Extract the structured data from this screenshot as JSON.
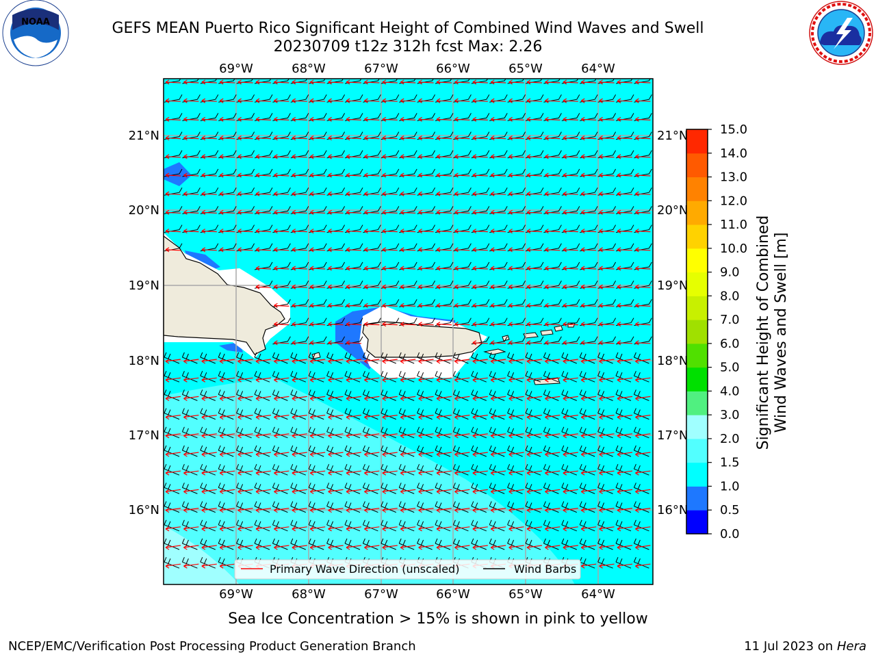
{
  "header": {
    "title_line1": "GEFS MEAN Puerto Rico Significant Height of Combined Wind Waves and Swell",
    "title_line2": "20230709 t12z 312h fcst   Max: 2.26"
  },
  "logos": {
    "noaa_text": "NOAA",
    "noaa_ring_text": "NATIONAL OCEANIC AND ATMOSPHERIC ADMINISTRATION · U.S. DEPARTMENT OF COMMERCE",
    "nws_ring_text": "NATIONAL WEATHER SERVICE"
  },
  "map": {
    "lon_labels": [
      "69°W",
      "68°W",
      "67°W",
      "66°W",
      "65°W",
      "64°W"
    ],
    "lat_labels": [
      "21°N",
      "20°N",
      "19°N",
      "18°N",
      "17°N",
      "16°N"
    ],
    "ocean_color": "#00ffff",
    "land_color": "#efebdc",
    "legend": {
      "wave_dir": "Primary Wave Direction (unscaled)",
      "wind_barbs": "Wind Barbs"
    }
  },
  "colorbar": {
    "label_line1": "Significant Height of Combined",
    "label_line2": "Wind Waves and Swell [m]",
    "ticks": [
      "0.0",
      "0.5",
      "1.0",
      "1.5",
      "2.0",
      "3.0",
      "4.0",
      "5.0",
      "6.0",
      "7.0",
      "8.0",
      "9.0",
      "10.0",
      "11.0",
      "12.0",
      "13.0",
      "14.0",
      "15.0"
    ],
    "colors": [
      "#0000ff",
      "#1e78ff",
      "#00ffff",
      "#52ffff",
      "#a0ffff",
      "#50f080",
      "#00e000",
      "#50e000",
      "#a0e000",
      "#c8f000",
      "#e6ff00",
      "#ffff00",
      "#ffd200",
      "#ffaa00",
      "#ff8200",
      "#ff5a00",
      "#ff2800"
    ]
  },
  "footer": {
    "sea_ice_note": "Sea Ice Concentration > 15% is shown in pink to yellow",
    "branch": "NCEP/EMC/Verification Post Processing Product Generation Branch",
    "date_prefix": "11 Jul 2023 on ",
    "host": "Hera"
  }
}
